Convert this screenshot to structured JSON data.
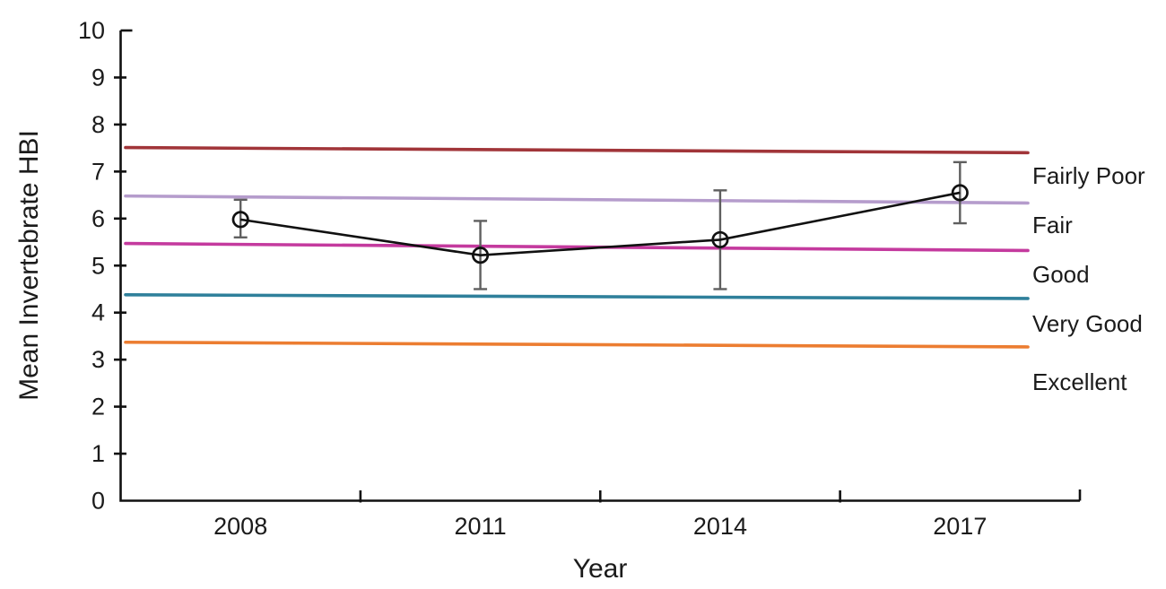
{
  "chart_data": {
    "type": "line",
    "title": "",
    "xlabel": "Year",
    "ylabel": "Mean Invertebrate HBI",
    "x_categories": [
      "2008",
      "2011",
      "2014",
      "2017"
    ],
    "ylim": [
      0,
      10
    ],
    "y_ticks": [
      0,
      1,
      2,
      3,
      4,
      5,
      6,
      7,
      8,
      9,
      10
    ],
    "grid": false,
    "legend_position": "none",
    "series": [
      {
        "name": "Mean Invertebrate HBI",
        "marker": "open-circle",
        "color": "#111111",
        "error_color": "#5f5f5f",
        "values": [
          5.98,
          5.22,
          5.55,
          6.55
        ],
        "error_low": [
          5.6,
          4.5,
          4.5,
          5.9
        ],
        "error_high": [
          6.4,
          5.95,
          6.6,
          7.2
        ]
      }
    ],
    "threshold_lines": [
      {
        "label": "Fairly Poor",
        "start_value": 7.51,
        "end_value": 7.4,
        "label_value": 6.91,
        "color": "#a13539"
      },
      {
        "label": "Fair",
        "start_value": 6.48,
        "end_value": 6.33,
        "label_value": 5.86,
        "color": "#b59ccc"
      },
      {
        "label": "Good",
        "start_value": 5.47,
        "end_value": 5.32,
        "label_value": 4.81,
        "color": "#c43a9e"
      },
      {
        "label": "Very Good",
        "start_value": 4.38,
        "end_value": 4.3,
        "label_value": 3.77,
        "color": "#2f809b"
      },
      {
        "label": "Excellent",
        "start_value": 3.37,
        "end_value": 3.27,
        "label_value": 2.53,
        "color": "#ec7d31"
      }
    ],
    "text_color": "#1b1b1b",
    "axis_color": "#111111"
  }
}
